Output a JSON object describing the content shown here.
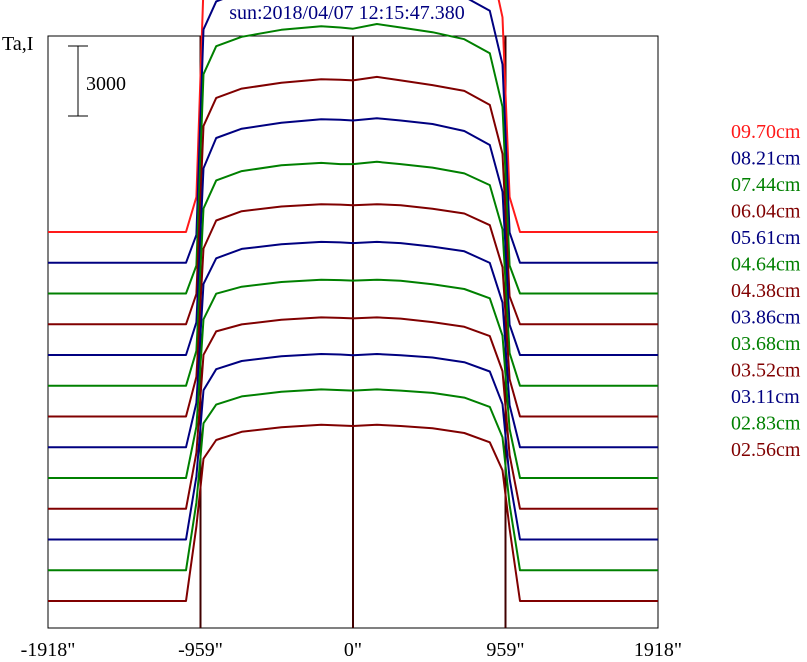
{
  "chart_data": {
    "type": "line",
    "title": "sun:2018/04/07 12:15:47.380",
    "ylabel": "Ta,I",
    "scale_bar_label": "3000",
    "scale_bar_value": 3000,
    "x_ticks": [
      {
        "value": -1918,
        "label": "-1918\""
      },
      {
        "value": -959,
        "label": "-959\""
      },
      {
        "value": 0,
        "label": "0\""
      },
      {
        "value": 959,
        "label": "959\""
      },
      {
        "value": 1918,
        "label": "1918\""
      }
    ],
    "xlim": [
      -1918,
      1918
    ],
    "vlines": [
      -959,
      0,
      959
    ],
    "series": [
      {
        "name": "09.70cm",
        "color": "#ff1a1a",
        "values": [
          0,
          0,
          0,
          0,
          0,
          1500,
          10500,
          12000,
          12400,
          12700,
          13000,
          12950,
          12900,
          13100,
          12950,
          12700,
          12300,
          11700,
          9200,
          1500,
          0,
          0,
          0,
          0,
          0
        ]
      },
      {
        "name": "08.21cm",
        "color": "#000080",
        "values": [
          0,
          0,
          0,
          0,
          0,
          1200,
          10000,
          11200,
          11600,
          11850,
          12050,
          12000,
          11950,
          12150,
          12000,
          11800,
          11400,
          10800,
          8500,
          1300,
          0,
          0,
          0,
          0,
          0
        ]
      },
      {
        "name": "07.44cm",
        "color": "#008000",
        "values": [
          0,
          0,
          0,
          0,
          0,
          1200,
          9400,
          10600,
          11000,
          11300,
          11450,
          11400,
          11350,
          11550,
          11400,
          11200,
          10900,
          10300,
          8000,
          1200,
          0,
          0,
          0,
          0,
          0
        ]
      },
      {
        "name": "06.04cm",
        "color": "#800000",
        "values": [
          0,
          0,
          0,
          0,
          0,
          1300,
          8500,
          9700,
          10100,
          10350,
          10500,
          10480,
          10450,
          10600,
          10450,
          10250,
          10000,
          9400,
          7300,
          1200,
          0,
          0,
          0,
          0,
          0
        ]
      },
      {
        "name": "05.61cm",
        "color": "#000080",
        "values": [
          0,
          0,
          0,
          0,
          0,
          1400,
          8000,
          9300,
          9700,
          9950,
          10100,
          10080,
          10050,
          10150,
          10050,
          9900,
          9600,
          9000,
          7000,
          1300,
          0,
          0,
          0,
          0,
          0
        ]
      },
      {
        "name": "04.64cm",
        "color": "#008000",
        "values": [
          0,
          0,
          0,
          0,
          0,
          1500,
          7600,
          8800,
          9200,
          9450,
          9550,
          9500,
          9500,
          9600,
          9500,
          9350,
          9100,
          8600,
          6700,
          1400,
          0,
          0,
          0,
          0,
          0
        ]
      },
      {
        "name": "04.38cm",
        "color": "#800000",
        "values": [
          0,
          0,
          0,
          0,
          0,
          1700,
          7200,
          8400,
          8800,
          9000,
          9100,
          9080,
          9050,
          9100,
          9050,
          8900,
          8700,
          8200,
          6400,
          1600,
          0,
          0,
          0,
          0,
          0
        ]
      },
      {
        "name": "03.86cm",
        "color": "#000080",
        "values": [
          0,
          0,
          0,
          0,
          0,
          1900,
          7000,
          8100,
          8500,
          8700,
          8800,
          8780,
          8750,
          8800,
          8750,
          8600,
          8400,
          7900,
          6200,
          1800,
          0,
          0,
          0,
          0,
          0
        ]
      },
      {
        "name": "03.68cm",
        "color": "#008000",
        "values": [
          0,
          0,
          0,
          0,
          0,
          2200,
          6800,
          7900,
          8200,
          8400,
          8500,
          8480,
          8460,
          8500,
          8450,
          8300,
          8100,
          7700,
          6100,
          2100,
          0,
          0,
          0,
          0,
          0
        ]
      },
      {
        "name": "03.52cm",
        "color": "#800000",
        "values": [
          0,
          0,
          0,
          0,
          0,
          2400,
          6600,
          7600,
          7900,
          8100,
          8200,
          8180,
          8160,
          8200,
          8150,
          8000,
          7800,
          7400,
          5900,
          2300,
          0,
          0,
          0,
          0,
          0
        ]
      },
      {
        "name": "03.11cm",
        "color": "#000080",
        "values": [
          0,
          0,
          0,
          0,
          0,
          2700,
          6400,
          7300,
          7650,
          7850,
          7950,
          7930,
          7900,
          7950,
          7900,
          7800,
          7600,
          7200,
          5800,
          2600,
          0,
          0,
          0,
          0,
          0
        ]
      },
      {
        "name": "02.83cm",
        "color": "#008000",
        "values": [
          0,
          0,
          0,
          0,
          0,
          2900,
          6300,
          7100,
          7450,
          7650,
          7750,
          7720,
          7700,
          7750,
          7700,
          7600,
          7400,
          7000,
          5700,
          2800,
          0,
          0,
          0,
          0,
          0
        ]
      },
      {
        "name": "02.56cm",
        "color": "#800000",
        "values": [
          0,
          0,
          0,
          0,
          0,
          3200,
          6100,
          6900,
          7250,
          7450,
          7550,
          7520,
          7500,
          7550,
          7500,
          7400,
          7200,
          6800,
          5600,
          3100,
          0,
          0,
          0,
          0,
          0
        ]
      }
    ],
    "x": [
      -1918,
      -1600,
      -1300,
      -1150,
      -1050,
      -985,
      -940,
      -860,
      -700,
      -450,
      -200,
      -80,
      0,
      150,
      300,
      500,
      700,
      860,
      940,
      985,
      1050,
      1150,
      1300,
      1600,
      1918
    ],
    "grid": false,
    "legend_position": "right"
  }
}
